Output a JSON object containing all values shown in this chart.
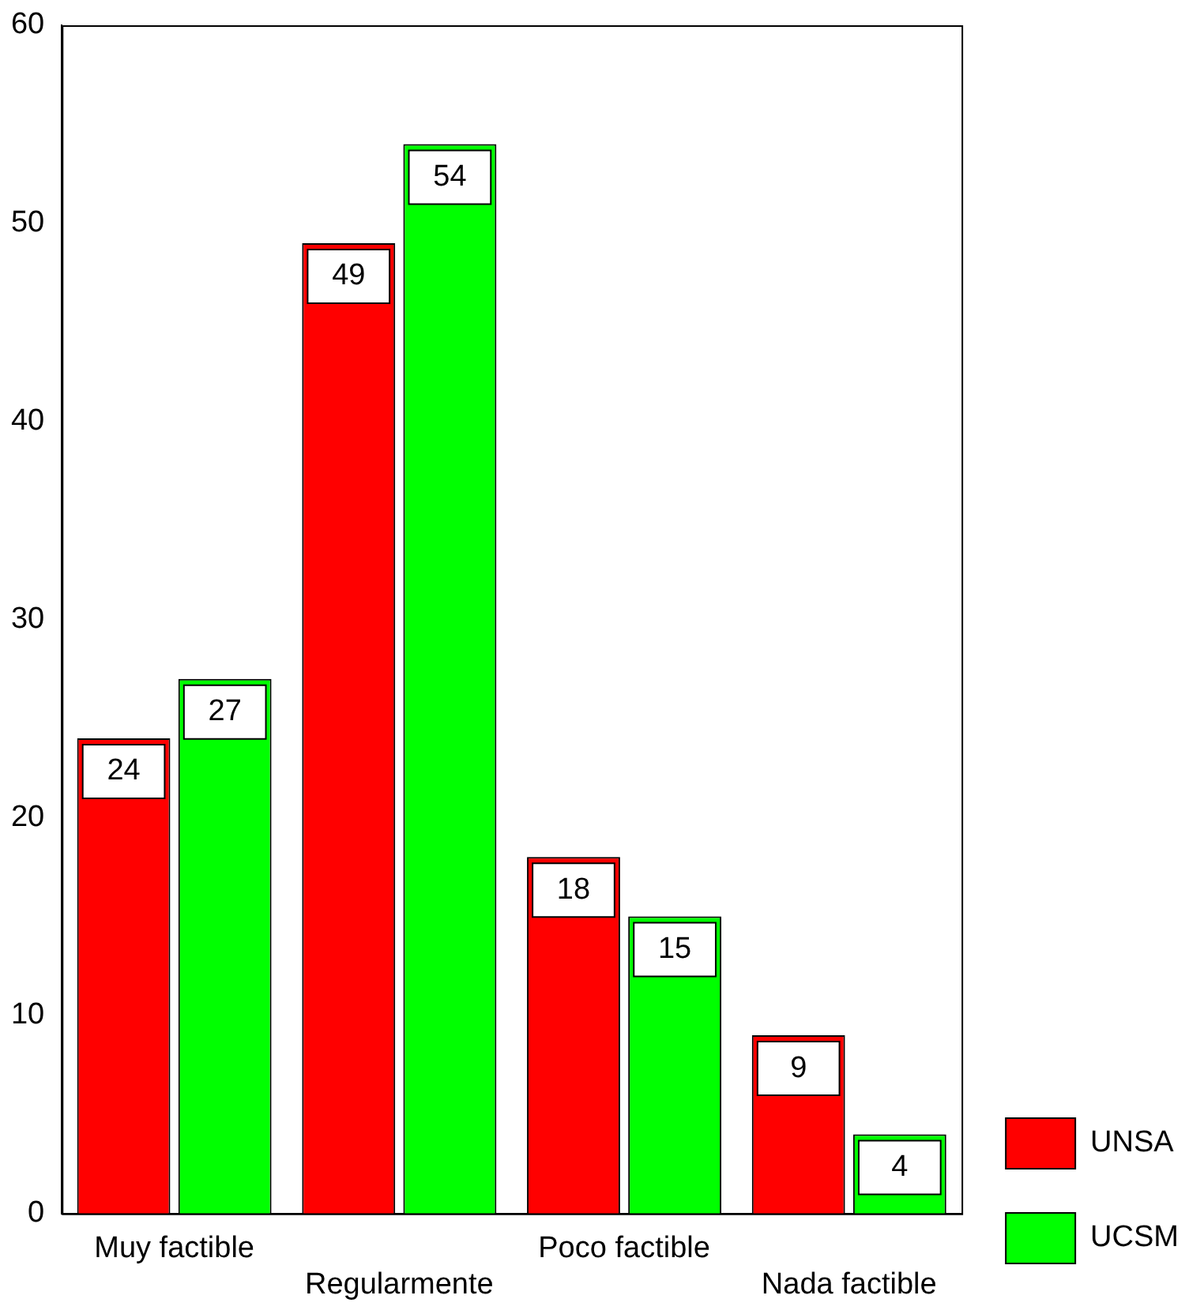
{
  "chart_data": {
    "type": "bar",
    "categories": [
      "Muy factible",
      "Regularmente",
      "Poco factible",
      "Nada factible"
    ],
    "series": [
      {
        "name": "UNSA",
        "color": "#ff0000",
        "values": [
          24,
          49,
          18,
          9
        ]
      },
      {
        "name": "UCSM",
        "color": "#00ff00",
        "values": [
          27,
          54,
          15,
          4
        ]
      }
    ],
    "ylim": [
      0,
      60
    ],
    "yticks": [
      0,
      10,
      20,
      30,
      40,
      50,
      60
    ],
    "grid": false,
    "legend": "bottom right",
    "data_labels": true
  }
}
